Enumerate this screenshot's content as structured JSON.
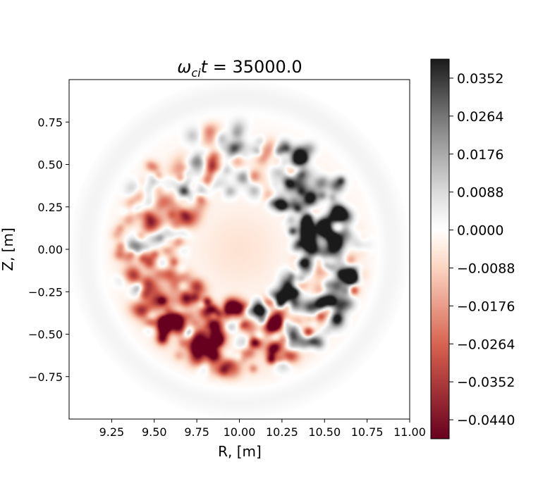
{
  "chart_data": {
    "type": "heatmap",
    "title": "ω_ci t = 35000.0",
    "title_parts": {
      "omega": "ω",
      "sub": "ci",
      "t": "t",
      "rest": " = 35000.0"
    },
    "xlabel": "R, [m]",
    "ylabel": "Z, [m]",
    "xlim": [
      9.0,
      11.0
    ],
    "ylim": [
      -1.0,
      1.0
    ],
    "xticks": [
      9.25,
      9.5,
      9.75,
      10.0,
      10.25,
      10.5,
      10.75,
      11.0
    ],
    "xtick_labels": [
      "9.25",
      "9.50",
      "9.75",
      "10.00",
      "10.25",
      "10.50",
      "10.75",
      "11.00"
    ],
    "yticks": [
      0.75,
      0.5,
      0.25,
      0.0,
      -0.25,
      -0.5,
      -0.75
    ],
    "ytick_labels": [
      "0.75",
      "0.50",
      "0.25",
      "0.00",
      "−0.25",
      "−0.50",
      "−0.75"
    ],
    "colorbar": {
      "vmin": -0.0484,
      "vmax": 0.0396,
      "ticks": [
        0.0352,
        0.0264,
        0.0176,
        0.0088,
        0.0,
        -0.0088,
        -0.0176,
        -0.0264,
        -0.0352,
        -0.044
      ],
      "tick_labels": [
        "0.0352",
        "0.0264",
        "0.0176",
        "0.0088",
        "0.0000",
        "−0.0088",
        "−0.0176",
        "−0.0264",
        "−0.0352",
        "−0.0440"
      ],
      "colormap": "RdGy",
      "colors": {
        "neg_end": "#67001f",
        "neg_mid": "#d6604d",
        "neg_light": "#fddbc7",
        "zero": "#ffffff",
        "pos_light": "#e0e0e0",
        "pos_mid": "#878787",
        "pos_end": "#1a1a1a"
      }
    },
    "field": {
      "center_R": 10.0,
      "center_Z": 0.0,
      "domain_radius": 1.0,
      "ring_radius": 0.53,
      "ring_width": 0.2,
      "core_value": -0.006,
      "edge_value": 0.002,
      "description_none": ""
    },
    "grid": false,
    "legend": "none"
  }
}
